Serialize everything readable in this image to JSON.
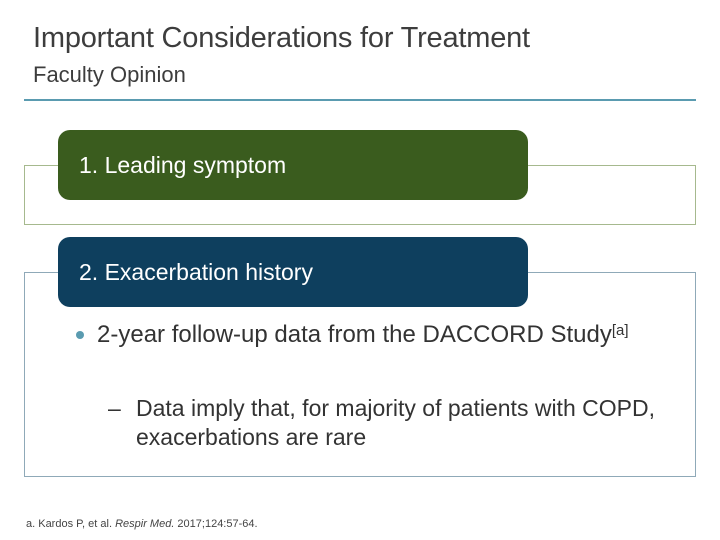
{
  "header": {
    "title": "Important Considerations for Treatment",
    "subtitle": "Faculty Opinion"
  },
  "sections": [
    {
      "label": "1. Leading symptom"
    },
    {
      "label": "2. Exacerbation history"
    }
  ],
  "content": {
    "bullet": {
      "text": "2-year follow-up data from the DACCORD Study",
      "superscript": "[a]"
    },
    "sub_bullet": {
      "marker": "–",
      "text": "Data imply that, for majority of patients with COPD, exacerbations are rare"
    }
  },
  "footnote": {
    "prefix": "a. Kardos P, et al. ",
    "journal": "Respir Med.",
    "suffix": " 2017;124:57-64."
  },
  "colors": {
    "rule": "#5a9bb0",
    "section1": "#3a5c1e",
    "section2": "#0e3f5e"
  }
}
